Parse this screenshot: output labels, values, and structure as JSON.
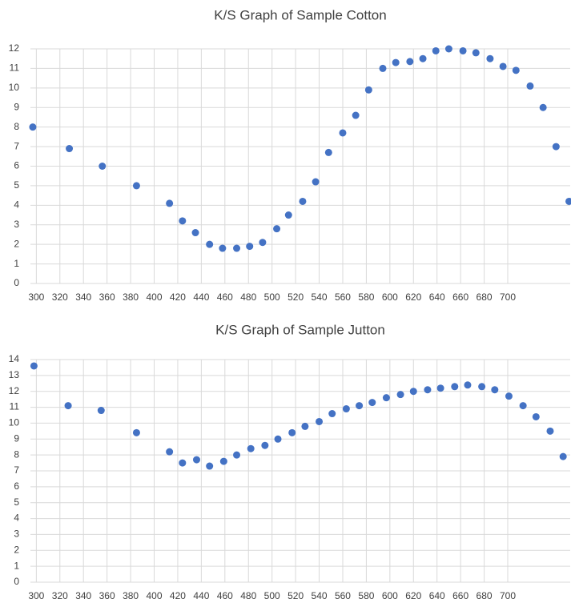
{
  "chart_data": [
    {
      "type": "scatter",
      "title": "K/S Graph of Sample Cotton",
      "color": "#4472c4",
      "grid": true,
      "x": [
        297,
        328,
        356,
        385,
        413,
        424,
        435,
        447,
        458,
        470,
        481,
        492,
        504,
        514,
        526,
        537,
        548,
        560,
        571,
        582,
        594,
        605,
        617,
        628,
        639,
        650,
        662,
        673,
        685,
        696,
        707,
        719,
        730,
        741,
        752
      ],
      "values": [
        8.0,
        6.9,
        6.0,
        5.0,
        4.1,
        3.2,
        2.6,
        2.0,
        1.8,
        1.8,
        1.9,
        2.1,
        2.8,
        3.5,
        4.2,
        5.2,
        6.7,
        7.7,
        8.6,
        9.9,
        11.0,
        11.3,
        11.35,
        11.5,
        11.9,
        12.0,
        11.9,
        11.8,
        11.5,
        11.1,
        10.9,
        10.1,
        9.0,
        7.0,
        4.2
      ],
      "xlim": [
        295,
        753
      ],
      "xticks": [
        300,
        320,
        340,
        360,
        380,
        400,
        420,
        440,
        460,
        480,
        500,
        520,
        540,
        560,
        580,
        600,
        620,
        640,
        660,
        680,
        700
      ],
      "ylim": [
        0,
        12
      ],
      "yticks": [
        0,
        1,
        2,
        3,
        4,
        5,
        6,
        7,
        8,
        9,
        10,
        11,
        12
      ]
    },
    {
      "type": "scatter",
      "title": "K/S Graph of Sample Jutton",
      "color": "#4472c4",
      "grid": true,
      "x": [
        298,
        327,
        355,
        385,
        413,
        424,
        436,
        447,
        459,
        470,
        482,
        494,
        505,
        517,
        528,
        540,
        551,
        563,
        574,
        585,
        597,
        609,
        620,
        632,
        643,
        655,
        666,
        678,
        689,
        701,
        713,
        724,
        736,
        747
      ],
      "values": [
        13.6,
        11.1,
        10.8,
        9.4,
        8.2,
        7.5,
        7.7,
        7.3,
        7.6,
        8.0,
        8.4,
        8.6,
        9.0,
        9.4,
        9.8,
        10.1,
        10.6,
        10.9,
        11.1,
        11.3,
        11.6,
        11.8,
        12.0,
        12.1,
        12.2,
        12.3,
        12.4,
        12.3,
        12.1,
        11.7,
        11.1,
        10.4,
        9.5,
        7.9
      ],
      "xlim": [
        295,
        753
      ],
      "xticks": [
        300,
        320,
        340,
        360,
        380,
        400,
        420,
        440,
        460,
        480,
        500,
        520,
        540,
        560,
        580,
        600,
        620,
        640,
        660,
        680,
        700
      ],
      "ylim": [
        0,
        14
      ],
      "yticks": [
        0,
        1,
        2,
        3,
        4,
        5,
        6,
        7,
        8,
        9,
        10,
        11,
        12,
        13,
        14
      ]
    }
  ]
}
